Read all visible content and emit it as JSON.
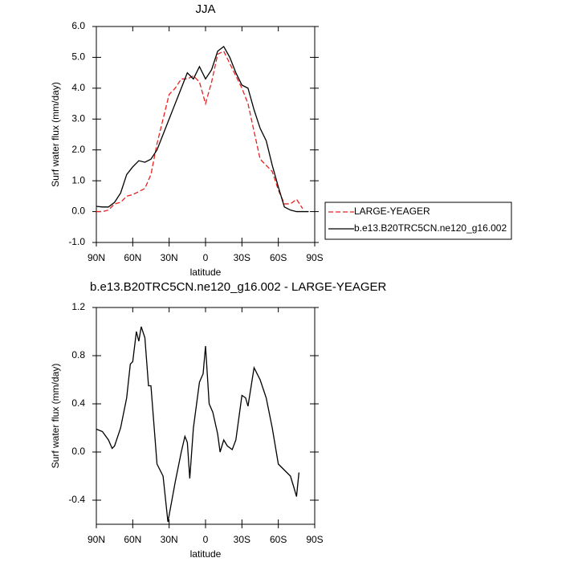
{
  "chart_data": [
    {
      "type": "line",
      "title": "JJA",
      "xlabel": "latitude",
      "ylabel": "Surf water flux (mm/day)",
      "x": [
        90,
        85,
        80,
        75,
        70,
        65,
        60,
        55,
        50,
        45,
        40,
        35,
        30,
        25,
        20,
        15,
        10,
        5,
        0,
        -5,
        -10,
        -15,
        -20,
        -25,
        -30,
        -35,
        -40,
        -45,
        -50,
        -55,
        -60,
        -65,
        -70,
        -75,
        -80,
        -85
      ],
      "series": [
        {
          "name": "LARGE-YEAGER",
          "color": "#e8201e",
          "dash": true,
          "values": [
            0.0,
            0.0,
            0.05,
            0.25,
            0.3,
            0.5,
            0.55,
            0.65,
            0.75,
            1.2,
            2.2,
            3.0,
            3.8,
            4.0,
            4.3,
            4.3,
            4.4,
            4.2,
            3.5,
            4.2,
            5.1,
            5.2,
            4.8,
            4.4,
            4.0,
            3.5,
            2.6,
            1.7,
            1.5,
            1.3,
            0.7,
            0.25,
            0.25,
            0.4,
            0.1,
            null
          ]
        },
        {
          "name": "b.e13.B20TRC5CN.ne120_g16.002",
          "color": "#000000",
          "dash": false,
          "values": [
            0.17,
            0.15,
            0.15,
            0.3,
            0.6,
            1.2,
            1.45,
            1.65,
            1.6,
            1.7,
            2.0,
            2.5,
            3.0,
            3.5,
            4.0,
            4.5,
            4.3,
            4.7,
            4.3,
            4.6,
            5.2,
            5.35,
            5.0,
            4.5,
            4.1,
            4.0,
            3.3,
            2.7,
            2.3,
            1.5,
            0.8,
            0.15,
            0.05,
            0.0,
            0.0,
            0.0
          ]
        }
      ],
      "xlim": [
        90,
        -90
      ],
      "xticks": [
        {
          "value": 90,
          "label": "90N"
        },
        {
          "value": 60,
          "label": "60N"
        },
        {
          "value": 30,
          "label": "30N"
        },
        0,
        {
          "value": -30,
          "label": "30S"
        },
        {
          "value": -60,
          "label": "60S"
        },
        {
          "value": -90,
          "label": "90S"
        }
      ],
      "ylim": [
        -1,
        6
      ],
      "yticks": [
        {
          "value": -1,
          "label": "-1.0"
        },
        {
          "value": 0,
          "label": "0.0"
        },
        {
          "value": 1,
          "label": "1.0"
        },
        {
          "value": 2,
          "label": "2.0"
        },
        {
          "value": 3,
          "label": "3.0"
        },
        {
          "value": 4,
          "label": "4.0"
        },
        {
          "value": 5,
          "label": "5.0"
        },
        {
          "value": 6,
          "label": "6.0"
        }
      ],
      "legend": true
    },
    {
      "type": "line",
      "title": "b.e13.B20TRC5CN.ne120_g16.002 - LARGE-YEAGER",
      "xlabel": "latitude",
      "ylabel": "Surf water flux (mm/day)",
      "x": [
        90,
        85,
        80,
        77,
        75,
        70,
        65,
        62,
        60,
        57,
        55,
        53,
        50,
        47,
        45,
        40,
        35,
        31,
        25,
        20,
        17,
        15,
        13,
        10,
        5,
        2,
        0,
        -3,
        -6,
        -10,
        -12,
        -15,
        -18,
        -22,
        -25,
        -30,
        -33,
        -35,
        -40,
        -45,
        -50,
        -55,
        -60,
        -65,
        -70,
        -73,
        -75,
        -77
      ],
      "values": [
        0.19,
        0.17,
        0.1,
        0.03,
        0.05,
        0.2,
        0.45,
        0.73,
        0.75,
        1.0,
        0.92,
        1.04,
        0.95,
        0.55,
        0.55,
        -0.1,
        -0.2,
        -0.58,
        -0.25,
        0.0,
        0.13,
        0.08,
        -0.22,
        0.2,
        0.58,
        0.65,
        0.88,
        0.4,
        0.33,
        0.15,
        0.0,
        0.1,
        0.05,
        0.02,
        0.1,
        0.47,
        0.45,
        0.38,
        0.7,
        0.6,
        0.45,
        0.2,
        -0.1,
        -0.15,
        -0.2,
        -0.3,
        -0.37,
        -0.17
      ],
      "color": "#000000",
      "xlim": [
        90,
        -90
      ],
      "xticks": [
        {
          "value": 90,
          "label": "90N"
        },
        {
          "value": 60,
          "label": "60N"
        },
        {
          "value": 30,
          "label": "30N"
        },
        0,
        {
          "value": -30,
          "label": "30S"
        },
        {
          "value": -60,
          "label": "60S"
        },
        {
          "value": -90,
          "label": "90S"
        }
      ],
      "ylim": [
        -0.6,
        1.2
      ],
      "yticks": [
        -0.4,
        {
          "value": 0,
          "label": "0.0"
        },
        0.4,
        0.8,
        1.2
      ]
    }
  ]
}
